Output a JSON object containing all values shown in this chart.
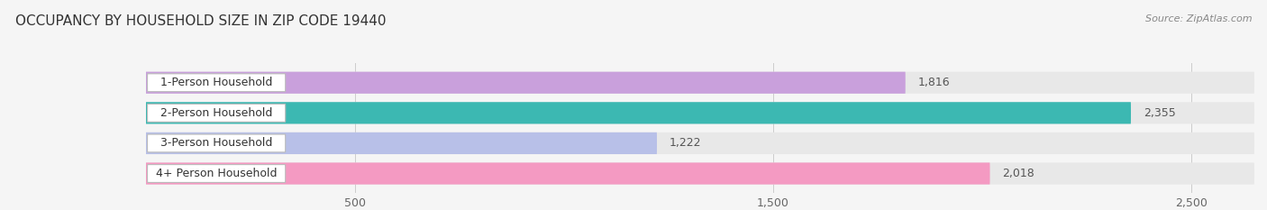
{
  "title": "OCCUPANCY BY HOUSEHOLD SIZE IN ZIP CODE 19440",
  "source": "Source: ZipAtlas.com",
  "categories": [
    "1-Person Household",
    "2-Person Household",
    "3-Person Household",
    "4+ Person Household"
  ],
  "values": [
    1816,
    2355,
    1222,
    2018
  ],
  "bar_colors": [
    "#c9a0dc",
    "#3cb8b2",
    "#b8c0e8",
    "#f49ac2"
  ],
  "bg_bar_color": "#e8e8e8",
  "xlim_max": 2650,
  "xticks": [
    500,
    1500,
    2500
  ],
  "title_fontsize": 11,
  "source_fontsize": 8,
  "axis_fontsize": 9,
  "value_fontsize": 9,
  "category_fontsize": 9,
  "background_color": "#f5f5f5"
}
